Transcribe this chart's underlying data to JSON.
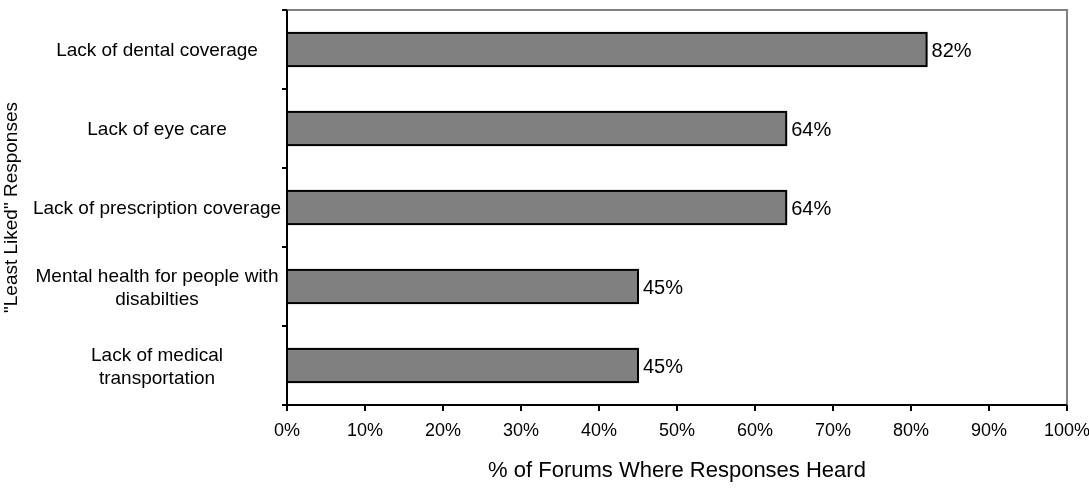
{
  "chart_data": {
    "type": "bar",
    "orientation": "horizontal",
    "xlabel": "% of Forums Where Responses Heard",
    "ylabel": "\"Least Liked\" Responses",
    "categories": [
      "Lack of dental coverage",
      "Lack of eye care",
      "Lack of prescription coverage",
      "Mental health for people with disabilties",
      "Lack of medical transportation"
    ],
    "values": [
      82,
      64,
      64,
      45,
      45
    ],
    "color": "#808080",
    "value_labels": [
      "82%",
      "64%",
      "64%",
      "45%",
      "45%"
    ],
    "xlim": [
      0,
      100
    ],
    "xticks": [
      {
        "value": 0,
        "label": "0%"
      },
      {
        "value": 10,
        "label": "10%"
      },
      {
        "value": 20,
        "label": "20%"
      },
      {
        "value": 30,
        "label": "30%"
      },
      {
        "value": 40,
        "label": "40%"
      },
      {
        "value": 50,
        "label": "50%"
      },
      {
        "value": 60,
        "label": "60%"
      },
      {
        "value": 70,
        "label": "70%"
      },
      {
        "value": 80,
        "label": "80%"
      },
      {
        "value": 90,
        "label": "90%"
      },
      {
        "value": 100,
        "label": "100%"
      }
    ],
    "grid": false
  }
}
